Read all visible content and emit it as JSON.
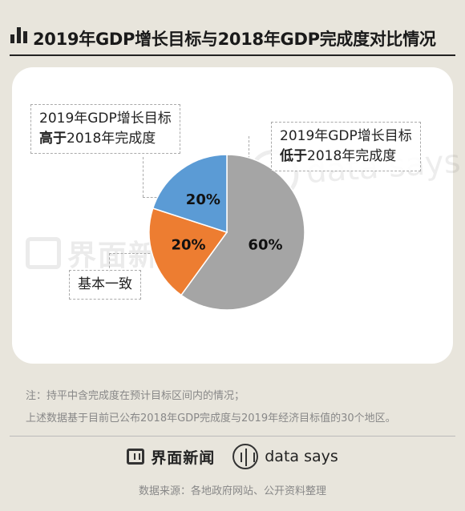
{
  "header": {
    "title": "2019年GDP增长目标与2018年GDP完成度对比情况",
    "icon": "bar-chart-icon"
  },
  "callouts": {
    "higher": {
      "line1": "2019年GDP增长目标",
      "line2_bold": "高于",
      "line2_rest": "2018年完成度"
    },
    "lower": {
      "line1": "2019年GDP增长目标",
      "line2_bold": "低于",
      "line2_rest": "2018年完成度"
    },
    "equal": {
      "text": "基本一致"
    }
  },
  "chart_data": {
    "type": "pie",
    "title": "2019年GDP增长目标与2018年GDP完成度对比情况",
    "slices": [
      {
        "label": "2019年GDP增长目标低于2018年完成度",
        "value": 60,
        "display": "60%",
        "color": "#a5a5a5"
      },
      {
        "label": "基本一致",
        "value": 20,
        "display": "20%",
        "color": "#ed7d31"
      },
      {
        "label": "2019年GDP增长目标高于2018年完成度",
        "value": 20,
        "display": "20%",
        "color": "#5b9bd5"
      }
    ]
  },
  "notes": {
    "line1": "注：持平中含完成度在预计目标区间内的情况；",
    "line2": "上述数据基于目前已公布2018年GDP完成度与2019年经济目标值的30个地区。"
  },
  "watermarks": {
    "left": "界面新闻",
    "right": "data says"
  },
  "brands": {
    "jiemian": "界面新闻",
    "datasays": "data says"
  },
  "source": "数据来源：各地政府网站、公开资料整理"
}
